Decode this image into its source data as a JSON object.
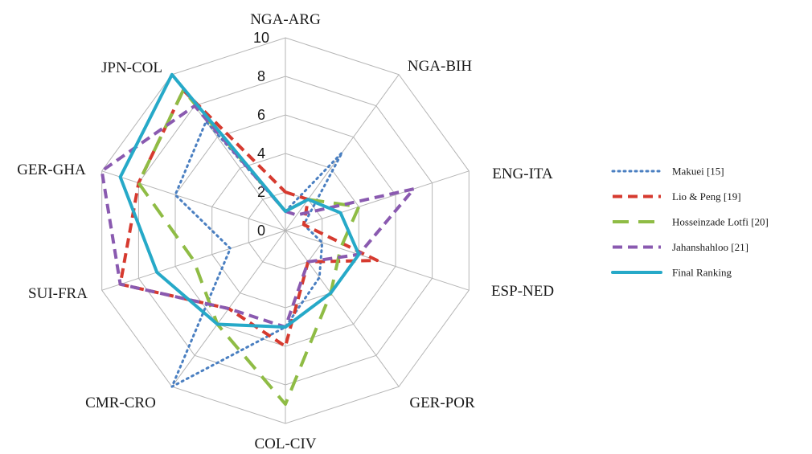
{
  "chart_data": {
    "type": "radar",
    "categories": [
      "NGA-ARG",
      "NGA-BIH",
      "ENG-ITA",
      "ESP-NED",
      "GER-POR",
      "COL-CIV",
      "CMR-CRO",
      "SUI-FRA",
      "GER-GHA",
      "JPN-COL"
    ],
    "rlim": [
      0,
      10
    ],
    "ticks": [
      "0",
      "2",
      "4",
      "6",
      "8",
      "10"
    ],
    "grid": true,
    "legend_position": "right",
    "series": [
      {
        "name": "Makuei [15]",
        "color": "#4a7fc1",
        "style": "dotted",
        "values": [
          1,
          5,
          1,
          2,
          3,
          5,
          10,
          3,
          6,
          7
        ]
      },
      {
        "name": "Lio & Peng [19]",
        "color": "#d63a2f",
        "style": "dashed",
        "values": [
          2,
          2,
          1,
          5,
          2,
          6,
          5,
          9,
          8,
          9
        ]
      },
      {
        "name": "Hosseinzade Lotfi [20]",
        "color": "#8fbc45",
        "style": "longdash",
        "values": [
          1,
          2,
          4,
          3,
          4,
          9,
          6,
          5,
          8,
          9
        ]
      },
      {
        "name": "Jahanshahloo [21]",
        "color": "#8a5ab0",
        "style": "dashed",
        "values": [
          1,
          1,
          7,
          4,
          2,
          5,
          5,
          9,
          10,
          8
        ]
      },
      {
        "name": "Final Ranking",
        "color": "#26a9c8",
        "style": "solid",
        "values": [
          1,
          2,
          3,
          4,
          4,
          5,
          6,
          7,
          9,
          10
        ]
      }
    ]
  }
}
